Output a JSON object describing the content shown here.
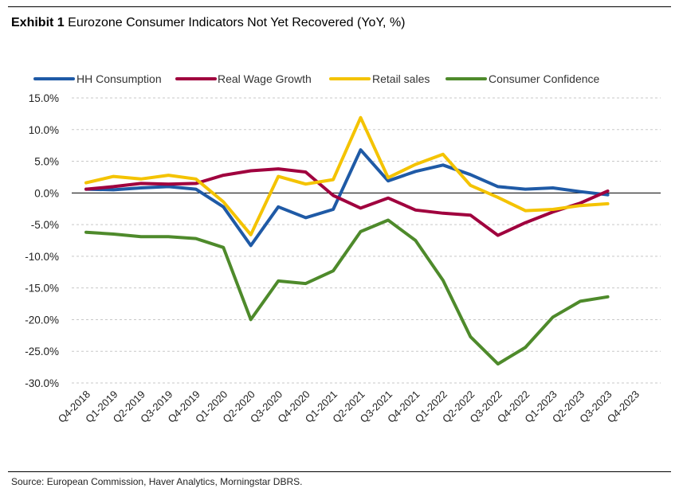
{
  "header": {
    "exhibit_label": "Exhibit 1",
    "title": "Eurozone Consumer Indicators Not Yet Recovered (YoY, %)"
  },
  "footer": {
    "source": "Source: European Commission, Haver Analytics, Morningstar DBRS."
  },
  "chart_data": {
    "type": "line",
    "title": "Eurozone Consumer Indicators Not Yet Recovered (YoY, %)",
    "xlabel": "",
    "ylabel": "",
    "ylim": [
      -30,
      15
    ],
    "yticks": [
      15,
      10,
      5,
      0,
      -5,
      -10,
      -15,
      -20,
      -25,
      -30
    ],
    "ytick_labels": [
      "15.0%",
      "10.0%",
      "5.0%",
      "0.0%",
      "-5.0%",
      "-10.0%",
      "-15.0%",
      "-20.0%",
      "-25.0%",
      "-30.0%"
    ],
    "grid": "horizontal dashed",
    "legend_position": "top",
    "categories": [
      "Q4-2018",
      "Q1-2019",
      "Q2-2019",
      "Q3-2019",
      "Q4-2019",
      "Q1-2020",
      "Q2-2020",
      "Q3-2020",
      "Q4-2020",
      "Q1-2021",
      "Q2-2021",
      "Q3-2021",
      "Q4-2021",
      "Q1-2022",
      "Q2-2022",
      "Q3-2022",
      "Q4-2022",
      "Q1-2023",
      "Q2-2023",
      "Q3-2023",
      "Q4-2023"
    ],
    "series": [
      {
        "name": "HH Consumption",
        "color": "#1f5aa6",
        "values": [
          0.6,
          0.5,
          0.8,
          1.0,
          0.6,
          -2.2,
          -8.3,
          -2.2,
          -3.9,
          -2.6,
          6.8,
          1.9,
          3.4,
          4.4,
          2.9,
          1.0,
          0.6,
          0.8,
          0.2,
          -0.3,
          null
        ]
      },
      {
        "name": "Real Wage Growth",
        "color": "#a0003e",
        "values": [
          0.6,
          1.0,
          1.5,
          1.4,
          1.5,
          2.8,
          3.5,
          3.8,
          3.3,
          -0.4,
          -2.4,
          -0.8,
          -2.7,
          -3.2,
          -3.5,
          -6.7,
          -4.7,
          -3.0,
          -1.6,
          0.3,
          null
        ]
      },
      {
        "name": "Retail sales",
        "color": "#f4c300",
        "values": [
          1.6,
          2.6,
          2.2,
          2.8,
          2.2,
          -1.4,
          -6.6,
          2.6,
          1.4,
          2.1,
          11.9,
          2.4,
          4.5,
          6.1,
          1.2,
          -0.7,
          -2.8,
          -2.6,
          -2.0,
          -1.7,
          null
        ]
      },
      {
        "name": "Consumer Confidence",
        "color": "#4e8a2b",
        "values": [
          -6.2,
          -6.5,
          -6.9,
          -6.9,
          -7.2,
          -8.6,
          -20.0,
          -13.9,
          -14.3,
          -12.3,
          -6.1,
          -4.3,
          -7.5,
          -13.8,
          -22.7,
          -27.0,
          -24.4,
          -19.6,
          -17.1,
          -16.4,
          null
        ]
      }
    ]
  }
}
